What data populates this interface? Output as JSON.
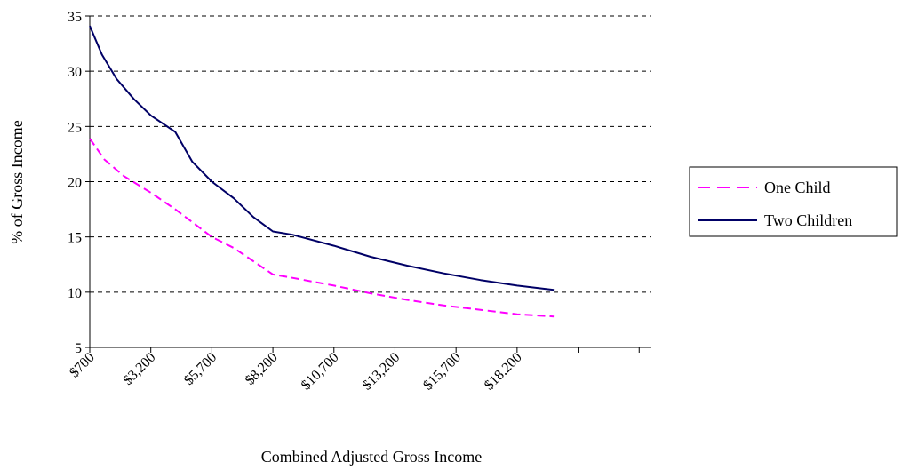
{
  "chart_data": {
    "type": "line",
    "xlabel": "Combined Adjusted Gross Income",
    "ylabel": "% of Gross Income",
    "ylim": [
      5,
      35
    ],
    "yticks": [
      5,
      10,
      15,
      20,
      25,
      30,
      35
    ],
    "xlim": [
      700,
      23700
    ],
    "xticks": [
      700,
      3200,
      5700,
      8200,
      10700,
      13200,
      15700,
      18200,
      20700,
      23200
    ],
    "xtick_labels": [
      "$700",
      "$3,200",
      "$5,700",
      "$8,200",
      "$10,700",
      "$13,200",
      "$15,700",
      "$18,200",
      "",
      ""
    ],
    "grid": "horizontal-dashed",
    "legend_position": "right",
    "series": [
      {
        "name": "One Child",
        "color": "#ff00ff",
        "dash": "dashed",
        "x": [
          700,
          1300,
          2100,
          3200,
          4200,
          5700,
          6600,
          7400,
          8200,
          9000,
          10700,
          12200,
          13700,
          15200,
          16700,
          18200,
          19700
        ],
        "values": [
          23.9,
          22.0,
          20.5,
          19.0,
          17.5,
          15.0,
          14.0,
          12.8,
          11.6,
          11.3,
          10.6,
          9.9,
          9.3,
          8.8,
          8.4,
          8.0,
          7.8
        ]
      },
      {
        "name": "Two Children",
        "color": "#000066",
        "dash": "solid",
        "x": [
          700,
          1200,
          1800,
          2500,
          3200,
          4200,
          4900,
          5700,
          6600,
          7400,
          8200,
          9000,
          10700,
          12200,
          13700,
          15200,
          16700,
          18200,
          19700
        ],
        "values": [
          34.1,
          31.5,
          29.3,
          27.5,
          26.0,
          24.5,
          21.8,
          20.0,
          18.5,
          16.8,
          15.5,
          15.2,
          14.2,
          13.2,
          12.4,
          11.7,
          11.1,
          10.6,
          10.2
        ]
      }
    ]
  }
}
